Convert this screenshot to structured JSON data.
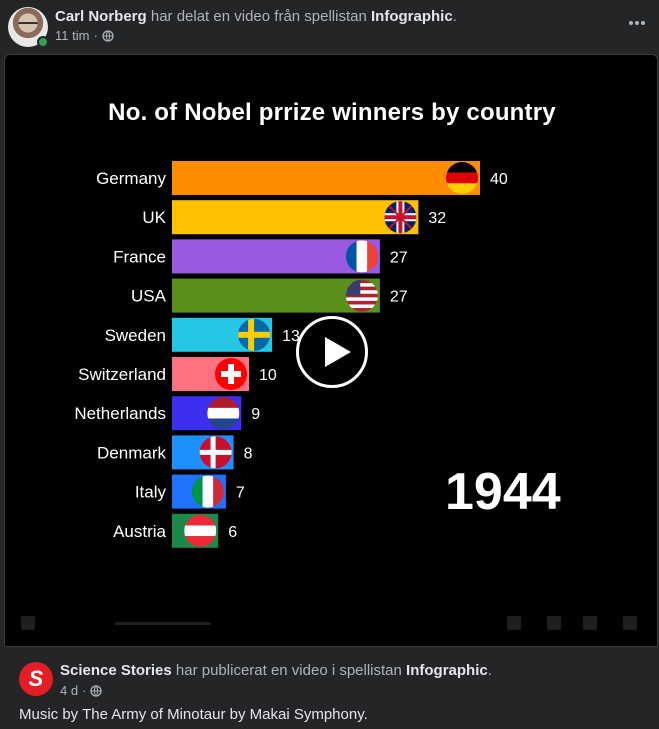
{
  "post": {
    "author": "Carl Norberg",
    "action_text": " har delat en video från spellistan ",
    "playlist": "Infographic",
    "period": ".",
    "time": "11 tim",
    "dot": "·"
  },
  "video": {
    "title": "No. of Nobel prrize winners by country",
    "year": "1944"
  },
  "chart_data": {
    "type": "bar",
    "orientation": "horizontal",
    "title": "No. of Nobel prrize winners by country",
    "categories": [
      "Germany",
      "UK",
      "France",
      "USA",
      "Sweden",
      "Switzerland",
      "Netherlands",
      "Denmark",
      "Italy",
      "Austria"
    ],
    "values": [
      40,
      32,
      27,
      27,
      13,
      10,
      9,
      8,
      7,
      6
    ],
    "colors": [
      "#ff8c00",
      "#ffc000",
      "#9b59e3",
      "#5b8e1a",
      "#25c7e4",
      "#ff7080",
      "#3d2ef0",
      "#1e90ff",
      "#1e74ff",
      "#1a8a4a"
    ],
    "flags": [
      "germany",
      "uk",
      "france",
      "usa",
      "sweden",
      "switzerland",
      "netherlands",
      "denmark",
      "italy",
      "austria"
    ],
    "xlim": [
      0,
      40
    ]
  },
  "share": {
    "page": "Science Stories",
    "action_text": " har publicerat en video i spellistan ",
    "playlist": "Infographic",
    "period": ".",
    "time": "4 d",
    "dot": "·",
    "logo_text": "S",
    "caption": "Music by The Army of Minotaur by Makai Symphony."
  },
  "icons": {
    "more": "more-horizontal-icon",
    "globe": "globe-icon",
    "play": "play-icon"
  }
}
